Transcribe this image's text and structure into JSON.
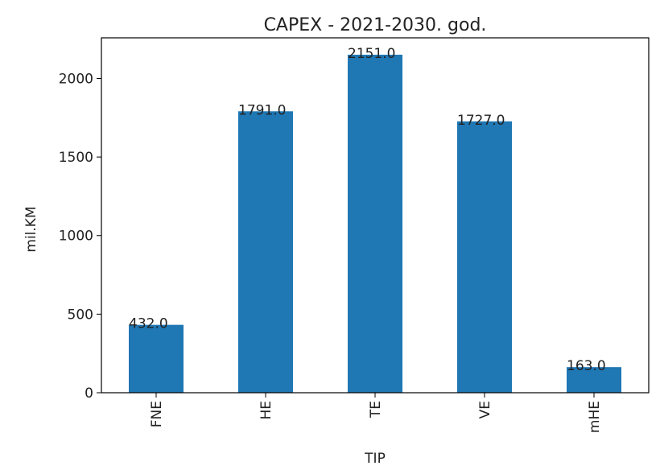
{
  "chart_data": {
    "type": "bar",
    "title": "CAPEX - 2021-2030. god.",
    "xlabel": "TIP",
    "ylabel": "mil.KM",
    "categories": [
      "FNE",
      "HE",
      "TE",
      "VE",
      "mHE"
    ],
    "values": [
      432.0,
      1791.0,
      2151.0,
      1727.0,
      163.0
    ],
    "data_labels": [
      "432.0",
      "1791.0",
      "2151.0",
      "1727.0",
      "163.0"
    ],
    "yticks": [
      0,
      500,
      1000,
      1500,
      2000
    ],
    "ylim": [
      0,
      2258.55
    ],
    "grid": false,
    "legend": "none",
    "bar_color": "#1f77b4",
    "x_tick_rotation": "vertical"
  }
}
